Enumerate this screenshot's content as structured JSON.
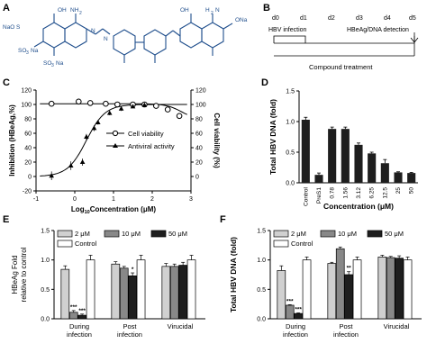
{
  "panels": {
    "A": "A",
    "B": "B",
    "C": "C",
    "D": "D",
    "E": "E",
    "F": "F"
  },
  "structure": {
    "color": "#1f4e8c",
    "labels": [
      "NaO",
      "S",
      "O",
      "O",
      "OH",
      "NH",
      "2",
      "N",
      "N",
      "SO",
      "3",
      "Na",
      "SO",
      "3",
      "Na",
      "OH",
      "H",
      "2",
      "N",
      "ONa",
      "O"
    ]
  },
  "timeline": {
    "days": [
      "d0",
      "d1",
      "d2",
      "d3",
      "d4",
      "d5"
    ],
    "hbv_infection": "HBV infection",
    "detection": "HBeAg/DNA detection",
    "compound": "Compound treatment"
  },
  "chart_data": [
    {
      "panel": "C",
      "type": "line",
      "xlabel": "Log",
      "xlabel_sub": "10",
      "xlabel_rest": "Concentration (μM)",
      "ylabel": "Inhibition (HBeAg,%)",
      "y2label": "Cell viability (%)",
      "xlim": [
        -1,
        3
      ],
      "ylim": [
        -20,
        120
      ],
      "xticks": [
        "-1",
        "0",
        "1",
        "2",
        "3"
      ],
      "yticks": [
        "-20",
        "0",
        "20",
        "40",
        "60",
        "80",
        "100",
        "120"
      ],
      "y2ticks": [
        "0",
        "20",
        "40",
        "60",
        "80",
        "100",
        "120"
      ],
      "series": [
        {
          "name": "Cell viability",
          "marker": "circle",
          "x": [
            -0.6,
            0.1,
            0.4,
            0.8,
            1.1,
            1.5,
            1.8,
            2.1,
            2.4,
            2.7
          ],
          "y": [
            101,
            104,
            102,
            101,
            100,
            100,
            100,
            98,
            93,
            84
          ],
          "err": [
            3,
            4,
            3,
            2,
            2,
            2,
            2,
            3,
            3,
            4
          ]
        },
        {
          "name": "Antiviral activity",
          "marker": "triangle",
          "x": [
            -0.6,
            -0.1,
            0.2,
            0.3,
            0.5,
            0.6,
            0.9,
            1.2,
            1.5,
            1.8
          ],
          "y": [
            1,
            15,
            20,
            55,
            67,
            75,
            88,
            94,
            97,
            99
          ],
          "err": [
            6,
            6,
            5,
            4,
            4,
            3,
            3,
            3,
            2,
            2
          ]
        }
      ]
    },
    {
      "panel": "D",
      "type": "bar",
      "ylabel": "Total HBV DNA (fold)",
      "xlabel": "Concentration (μM)",
      "categories": [
        "Control",
        "PreS1",
        "0.78",
        "1.56",
        "3.12",
        "6.25",
        "12.5",
        "25",
        "50"
      ],
      "values": [
        1.03,
        0.13,
        0.88,
        0.88,
        0.62,
        0.48,
        0.32,
        0.17,
        0.16
      ],
      "err": [
        0.04,
        0.03,
        0.03,
        0.03,
        0.03,
        0.02,
        0.06,
        0.01,
        0.01
      ],
      "ylim": [
        0,
        1.5
      ],
      "yticks": [
        "0.0",
        "0.5",
        "1.0",
        "1.5"
      ]
    },
    {
      "panel": "E",
      "type": "bar",
      "ylabel": "HBeAg Fold",
      "ylabel2": "relative to control",
      "ylim": [
        0,
        1.5
      ],
      "yticks": [
        "0.0",
        "0.5",
        "1.0",
        "1.5"
      ],
      "categories": [
        [
          "During",
          "infection"
        ],
        [
          "Post",
          "infection"
        ],
        [
          "Virucidal"
        ]
      ],
      "series": [
        {
          "name": "2 μM",
          "color": "#d0d0d0",
          "values": [
            0.84,
            0.93,
            0.89
          ],
          "err": [
            0.06,
            0.04,
            0.05
          ]
        },
        {
          "name": "10 μM",
          "color": "#888888",
          "values": [
            0.11,
            0.86,
            0.89
          ],
          "err": [
            0.03,
            0.03,
            0.04
          ]
        },
        {
          "name": "50 μM",
          "color": "#1e1e1e",
          "values": [
            0.06,
            0.73,
            0.91
          ],
          "err": [
            0.02,
            0.05,
            0.05
          ]
        },
        {
          "name": "Control",
          "color": "#ffffff",
          "values": [
            1.0,
            1.0,
            1.0
          ],
          "err": [
            0.08,
            0.08,
            0.08
          ]
        }
      ],
      "stars": [
        [
          "***",
          "***",
          ""
        ],
        [
          "",
          "*",
          ""
        ],
        [
          "",
          "",
          ""
        ]
      ]
    },
    {
      "panel": "F",
      "type": "bar",
      "ylabel": "Total HBV DNA (fold)",
      "ylim": [
        0,
        1.5
      ],
      "yticks": [
        "0.0",
        "0.5",
        "1.0",
        "1.5"
      ],
      "categories": [
        [
          "During",
          "infection"
        ],
        [
          "Post",
          "infection"
        ],
        [
          "Virucidal"
        ]
      ],
      "series": [
        {
          "name": "2 μM",
          "color": "#d0d0d0",
          "values": [
            0.82,
            0.94,
            1.05
          ],
          "err": [
            0.08,
            0.02,
            0.03
          ]
        },
        {
          "name": "10 μM",
          "color": "#888888",
          "values": [
            0.23,
            1.19,
            1.04
          ],
          "err": [
            0.01,
            0.03,
            0.02
          ]
        },
        {
          "name": "50 μM",
          "color": "#1e1e1e",
          "values": [
            0.09,
            0.75,
            1.03
          ],
          "err": [
            0.01,
            0.05,
            0.04
          ]
        },
        {
          "name": "Control",
          "color": "#ffffff",
          "values": [
            1.0,
            1.0,
            1.0
          ],
          "err": [
            0.05,
            0.05,
            0.05
          ]
        }
      ],
      "stars": [
        [
          "***",
          "***",
          ""
        ],
        [
          "",
          "**",
          ""
        ],
        [
          "",
          "",
          ""
        ]
      ]
    }
  ]
}
